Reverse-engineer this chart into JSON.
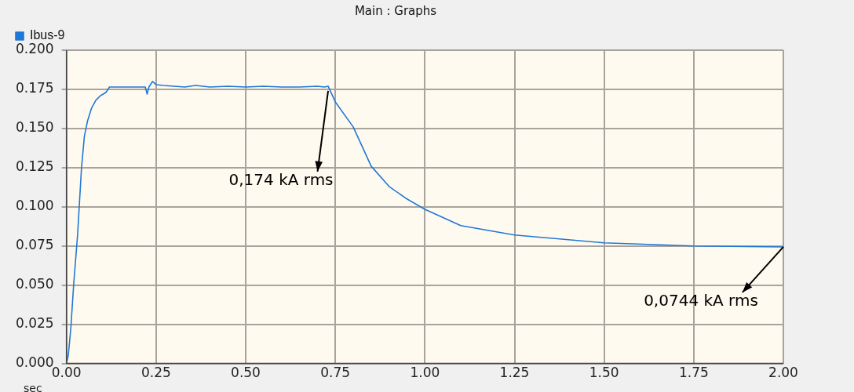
{
  "chart_data": {
    "type": "line",
    "title": "Main : Graphs",
    "xlabel": "sec",
    "x": [
      0,
      0.005,
      0.012,
      0.02,
      0.031,
      0.042,
      0.05,
      0.059,
      0.07,
      0.082,
      0.095,
      0.11,
      0.12,
      0.15,
      0.2,
      0.22,
      0.225,
      0.23,
      0.24,
      0.25,
      0.27,
      0.3,
      0.33,
      0.36,
      0.4,
      0.45,
      0.5,
      0.55,
      0.6,
      0.65,
      0.7,
      0.72,
      0.73,
      0.75,
      0.8,
      0.85,
      0.9,
      0.95,
      1.0,
      1.1,
      1.25,
      1.5,
      1.75,
      2.0
    ],
    "series": [
      {
        "name": "Ibus-9",
        "color": "#1f78d6",
        "values": [
          0,
          0.005,
          0.022,
          0.05,
          0.082,
          0.125,
          0.145,
          0.155,
          0.163,
          0.168,
          0.171,
          0.173,
          0.1765,
          0.1765,
          0.1765,
          0.1765,
          0.172,
          0.1765,
          0.18,
          0.178,
          0.1775,
          0.177,
          0.1765,
          0.1775,
          0.1765,
          0.177,
          0.1765,
          0.177,
          0.1765,
          0.1765,
          0.177,
          0.1765,
          0.177,
          0.167,
          0.151,
          0.126,
          0.113,
          0.105,
          0.0984,
          0.088,
          0.082,
          0.077,
          0.075,
          0.0744
        ]
      }
    ],
    "xlim": [
      0,
      2
    ],
    "xticks": [
      {
        "value": 0,
        "label": "0.00"
      },
      {
        "value": 0.25,
        "label": "0.25"
      },
      {
        "value": 0.5,
        "label": "0.50"
      },
      {
        "value": 0.75,
        "label": "0.75"
      },
      {
        "value": 1,
        "label": "1.00"
      },
      {
        "value": 1.25,
        "label": "1.25"
      },
      {
        "value": 1.5,
        "label": "1.50"
      },
      {
        "value": 1.75,
        "label": "1.75"
      },
      {
        "value": 2,
        "label": "2.00"
      }
    ],
    "ylim": [
      0,
      0.2
    ],
    "yticks": [
      {
        "value": 0,
        "label": "0.000"
      },
      {
        "value": 0.025,
        "label": "0.025"
      },
      {
        "value": 0.05,
        "label": "0.050"
      },
      {
        "value": 0.075,
        "label": "0.075"
      },
      {
        "value": 0.1,
        "label": "0.100"
      },
      {
        "value": 0.125,
        "label": "0.125"
      },
      {
        "value": 0.15,
        "label": "0.150"
      },
      {
        "value": 0.175,
        "label": "0.175"
      },
      {
        "value": 0.2,
        "label": "0.200"
      }
    ],
    "grid": true,
    "legend": "top left",
    "marker": "none",
    "line_style": "solid",
    "annotations": [
      {
        "text": "0,174 kA rms",
        "x": 0.73,
        "y": 0.174
      },
      {
        "text": "0,0744 kA rms",
        "x": 2.0,
        "y": 0.0744
      }
    ]
  }
}
